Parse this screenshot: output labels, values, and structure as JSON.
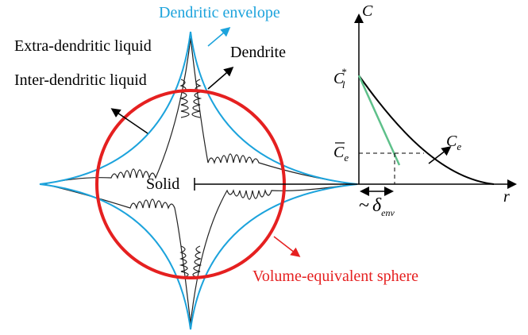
{
  "labels": {
    "envelope": "Dendritic envelope",
    "extra": "Extra-dendritic liquid",
    "dendrite": "Dendrite",
    "inter": "Inter-dendritic liquid",
    "solid": "Solid",
    "sphere": "Volume-equivalent sphere"
  },
  "profile": {
    "y_axis": "C",
    "x_axis": "r",
    "c_star": {
      "base": "C",
      "sup": "*",
      "sub": "l"
    },
    "c_bar": {
      "base": "C",
      "sub": "e"
    },
    "c_e": {
      "base": "C",
      "sub": "e"
    },
    "delta": {
      "tilde": "~",
      "base": "δ",
      "sub": "env"
    }
  }
}
